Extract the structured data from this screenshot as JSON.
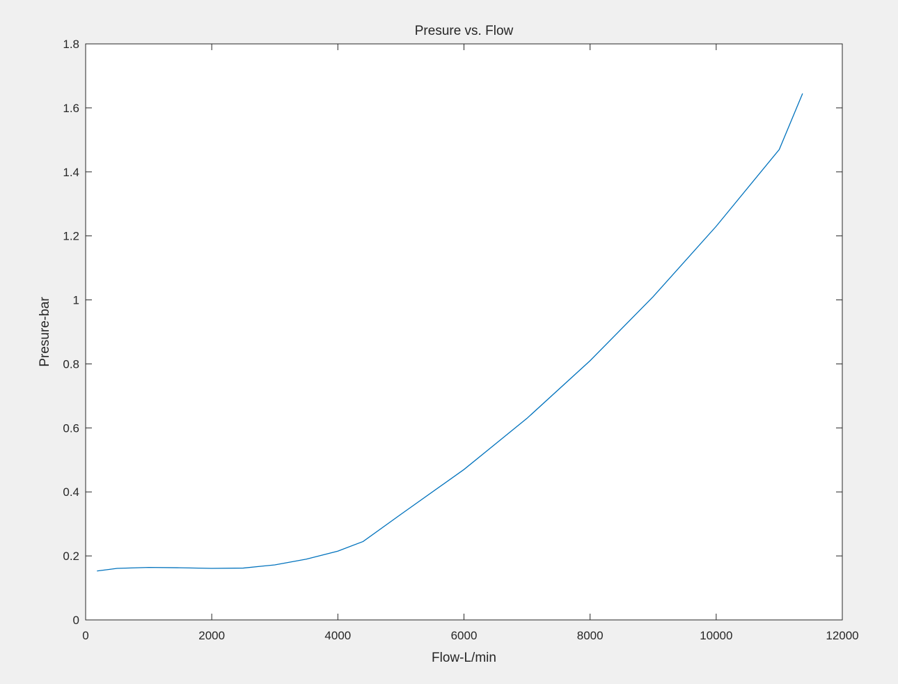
{
  "chart_data": {
    "type": "line",
    "title": "Presure vs. Flow",
    "xlabel": "Flow-L/min",
    "ylabel": "Presure-bar",
    "xlim": [
      0,
      12000
    ],
    "ylim": [
      0,
      1.8
    ],
    "xticks": [
      0,
      2000,
      4000,
      6000,
      8000,
      10000,
      12000
    ],
    "yticks": [
      0,
      0.2,
      0.4,
      0.6,
      0.8,
      1,
      1.2,
      1.4,
      1.6,
      1.8
    ],
    "xtick_labels": [
      "0",
      "2000",
      "4000",
      "6000",
      "8000",
      "10000",
      "12000"
    ],
    "ytick_labels": [
      "0",
      "0.2",
      "0.4",
      "0.6",
      "0.8",
      "1",
      "1.2",
      "1.4",
      "1.6",
      "1.8"
    ],
    "grid": false,
    "legend": null,
    "series": [
      {
        "color": "#0072bd",
        "x": [
          180,
          500,
          1000,
          1500,
          2000,
          2500,
          3000,
          3500,
          4000,
          4400,
          5000,
          6000,
          7000,
          8000,
          9000,
          10000,
          11000,
          11370
        ],
        "y": [
          0.153,
          0.161,
          0.164,
          0.163,
          0.161,
          0.162,
          0.172,
          0.19,
          0.215,
          0.245,
          0.33,
          0.47,
          0.63,
          0.81,
          1.01,
          1.23,
          1.47,
          1.645
        ]
      }
    ]
  }
}
